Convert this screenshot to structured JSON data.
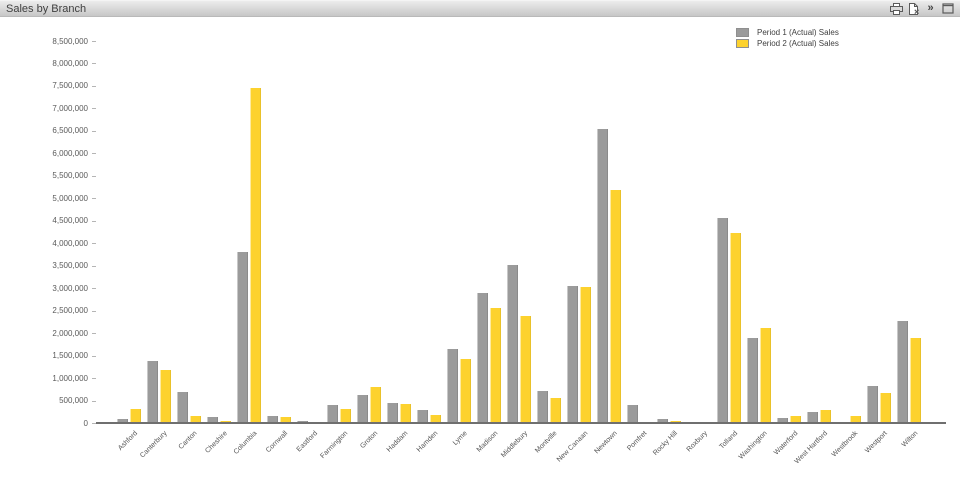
{
  "window": {
    "title": "Sales by Branch",
    "caption_icons": [
      {
        "name": "print-icon"
      },
      {
        "name": "send-to-excel-icon"
      },
      {
        "name": "fast-change-icon",
        "glyph": "»"
      },
      {
        "name": "maximize-icon"
      }
    ]
  },
  "colors": {
    "series1": "#9b9b9b",
    "series2": "#fdd22e",
    "axis_line": "#6f6f6f",
    "axis_text": "#5a5a5a",
    "caption_text": "#404040"
  },
  "legend": {
    "items": [
      {
        "label": "Period 1 (Actual) Sales",
        "color": "#9b9b9b"
      },
      {
        "label": "Period 2 (Actual) Sales",
        "color": "#fdd22e"
      }
    ]
  },
  "chart_data": {
    "type": "bar",
    "title": "Sales by Branch",
    "grid": false,
    "legend_position": "top-right",
    "ylim": [
      0,
      8500000
    ],
    "y_tick_step": 500000,
    "y_tick_labels": [
      "0",
      "500,000",
      "1,000,000",
      "1,500,000",
      "2,000,000",
      "2,500,000",
      "3,000,000",
      "3,500,000",
      "4,000,000",
      "4,500,000",
      "5,000,000",
      "5,500,000",
      "6,000,000",
      "6,500,000",
      "7,000,000",
      "7,500,000",
      "8,000,000",
      "8,500,000"
    ],
    "categories": [
      "Ashford",
      "Canterbury",
      "Canton",
      "Cheshire",
      "Columbia",
      "Cornwall",
      "Eastford",
      "Farmington",
      "Groton",
      "Haddam",
      "Hamden",
      "Lyme",
      "Madison",
      "Middlebury",
      "Montville",
      "New Canaan",
      "Newtown",
      "Pomfret",
      "Rocky Hill",
      "Roxbury",
      "Tolland",
      "Washington",
      "Waterford",
      "West Hartford",
      "Westbrook",
      "Westport",
      "Wilton"
    ],
    "series": [
      {
        "name": "Period 1 (Actual) Sales",
        "color": "#9b9b9b",
        "values": [
          100000,
          1390000,
          700000,
          130000,
          3800000,
          160000,
          50000,
          410000,
          630000,
          450000,
          300000,
          1650000,
          2890000,
          3520000,
          720000,
          3050000,
          6550000,
          400000,
          100000,
          25000,
          4560000,
          1890000,
          120000,
          250000,
          10000,
          820000,
          2280000
        ]
      },
      {
        "name": "Period 2 (Actual) Sales",
        "color": "#fdd22e",
        "values": [
          320000,
          1180000,
          150000,
          40000,
          7450000,
          130000,
          30000,
          320000,
          800000,
          430000,
          170000,
          1430000,
          2570000,
          2370000,
          560000,
          3020000,
          5190000,
          20000,
          50000,
          20000,
          4230000,
          2120000,
          150000,
          280000,
          150000,
          670000,
          1890000
        ]
      }
    ]
  }
}
